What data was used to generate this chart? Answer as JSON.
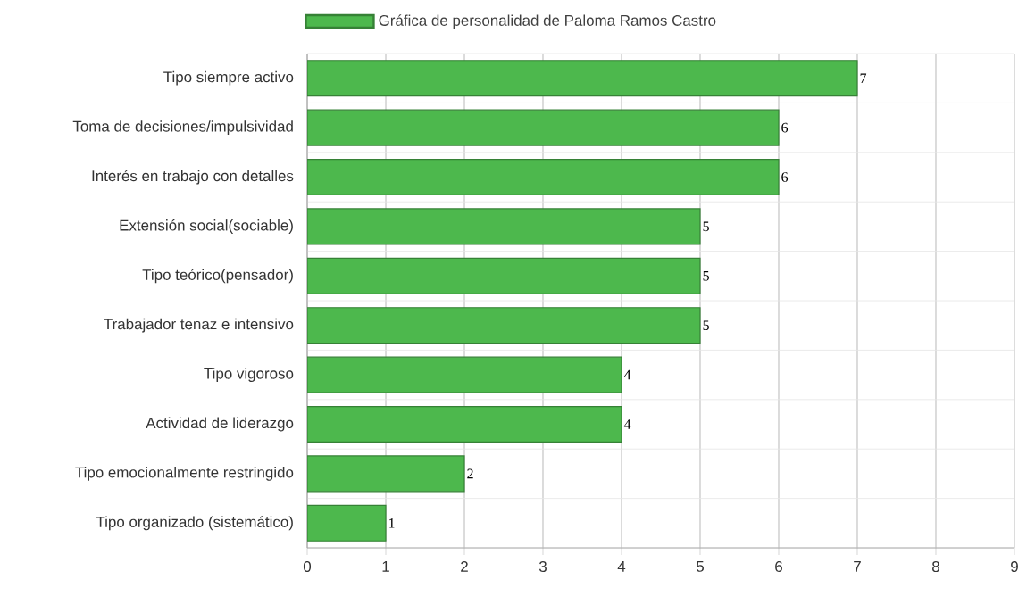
{
  "chart_data": {
    "type": "bar",
    "orientation": "horizontal",
    "categories": [
      "Tipo siempre activo",
      "Toma de decisiones/impulsividad",
      "Interés en trabajo con detalles",
      "Extensión social(sociable)",
      "Tipo teórico(pensador)",
      "Trabajador tenaz e intensivo",
      "Tipo vigoroso",
      "Actividad de liderazgo",
      "Tipo emocionalmente restringido",
      "Tipo organizado (sistemático)"
    ],
    "series": [
      {
        "name": "Gráfica de personalidad de Paloma Ramos Castro",
        "color": "#4db84d",
        "values": [
          7,
          6,
          6,
          5,
          5,
          5,
          4,
          4,
          2,
          1
        ]
      }
    ],
    "xlim": [
      0,
      9
    ],
    "xticks": [
      0,
      1,
      2,
      3,
      4,
      5,
      6,
      7,
      8,
      9
    ],
    "grid": true,
    "legend": "top",
    "data_labels": true
  }
}
